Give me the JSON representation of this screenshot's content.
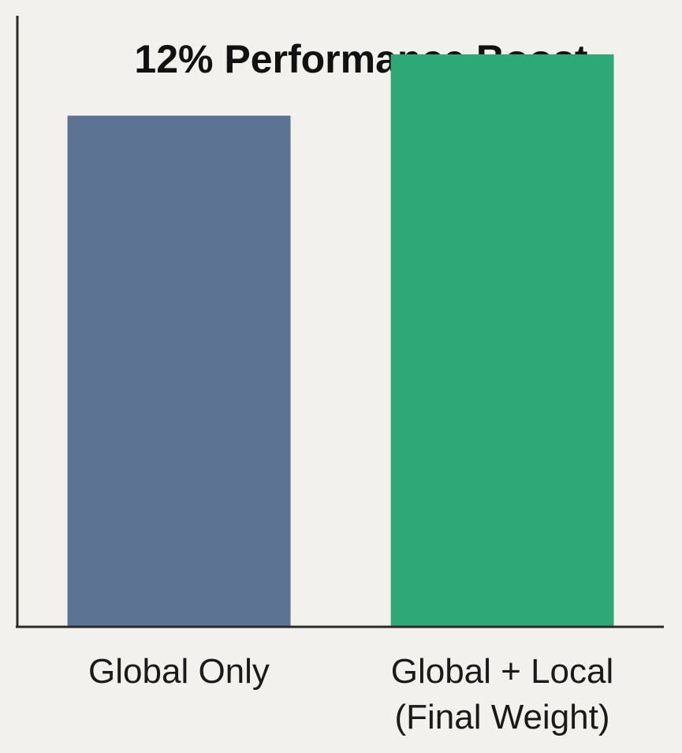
{
  "chart_data": {
    "type": "bar",
    "title": "12% Performance Boost",
    "categories": [
      "Global Only",
      "Global + Local (Final Weight)"
    ],
    "category_label_lines": [
      [
        "Global Only"
      ],
      [
        "Global + Local",
        "(Final Weight)"
      ]
    ],
    "values": [
      100,
      112
    ],
    "bar_colors": [
      "#5c7394",
      "#2fa878"
    ],
    "xlabel": "",
    "ylabel": "",
    "ylim": [
      0,
      118
    ],
    "grid": false,
    "legend": "none"
  }
}
